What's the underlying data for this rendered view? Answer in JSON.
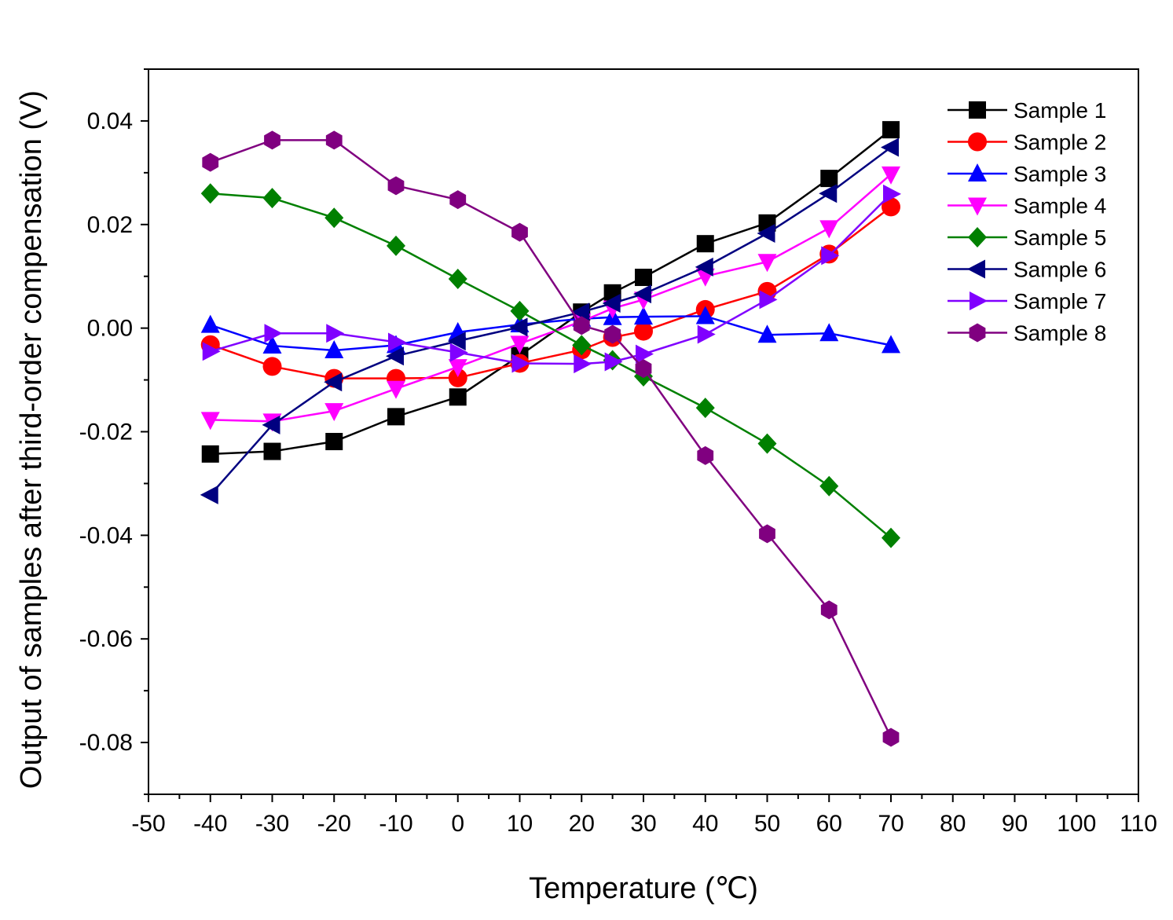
{
  "chart_data": {
    "type": "line",
    "title": "",
    "xlabel": "Temperature (℃)",
    "ylabel": "Output of samples after third-order compensation (V)",
    "xlim": [
      -50,
      110
    ],
    "ylim": [
      -0.09,
      0.05
    ],
    "xticks": [
      -50,
      -40,
      -30,
      -20,
      -10,
      0,
      10,
      20,
      30,
      40,
      50,
      60,
      70,
      80,
      90,
      100,
      110
    ],
    "xtick_labels": [
      "-50",
      "-40",
      "-30",
      "-20",
      "-10",
      "0",
      "10",
      "20",
      "30",
      "40",
      "50",
      "60",
      "70",
      "80",
      "90",
      "100",
      "110"
    ],
    "yticks": [
      -0.08,
      -0.06,
      -0.04,
      -0.02,
      0.0,
      0.02,
      0.04
    ],
    "ytick_labels": [
      "-0.08",
      "-0.06",
      "-0.04",
      "-0.02",
      "0.00",
      "0.02",
      "0.04"
    ],
    "grid": false,
    "legend_position": "top-right",
    "x": [
      -40,
      -30,
      -20,
      -10,
      0,
      10,
      20,
      25,
      30,
      40,
      50,
      60,
      70
    ],
    "series": [
      {
        "name": "Sample 1",
        "color": "#000000",
        "marker": "square",
        "values": [
          -0.0243,
          -0.0238,
          -0.0219,
          -0.0171,
          -0.0133,
          -0.0053,
          0.0031,
          0.0068,
          0.0098,
          0.0163,
          0.0203,
          0.0289,
          0.0383
        ]
      },
      {
        "name": "Sample 2",
        "color": "#ff0000",
        "marker": "circle",
        "values": [
          -0.0032,
          -0.0074,
          -0.0097,
          -0.0097,
          -0.0096,
          -0.0068,
          -0.0042,
          -0.0018,
          -0.0006,
          0.0036,
          0.0071,
          0.0143,
          0.0234
        ]
      },
      {
        "name": "Sample 3",
        "color": "#0000ff",
        "marker": "triangle-up",
        "values": [
          0.0006,
          -0.0034,
          -0.0043,
          -0.0033,
          -0.0008,
          0.0007,
          0.0018,
          0.0021,
          0.0022,
          0.0023,
          -0.0013,
          -0.001,
          -0.0033
        ]
      },
      {
        "name": "Sample 4",
        "color": "#ff00ff",
        "marker": "triangle-down",
        "values": [
          -0.0177,
          -0.018,
          -0.016,
          -0.0117,
          -0.0075,
          -0.003,
          0.0013,
          0.0038,
          0.0055,
          0.01,
          0.0128,
          0.0193,
          0.0297
        ]
      },
      {
        "name": "Sample 5",
        "color": "#008000",
        "marker": "diamond",
        "values": [
          0.026,
          0.0251,
          0.0213,
          0.0159,
          0.0095,
          0.0033,
          -0.0033,
          -0.0062,
          -0.0093,
          -0.0154,
          -0.0223,
          -0.0305,
          -0.0405
        ]
      },
      {
        "name": "Sample 6",
        "color": "#000080",
        "marker": "triangle-left",
        "values": [
          -0.0322,
          -0.0187,
          -0.0104,
          -0.0054,
          -0.0025,
          0.0002,
          0.0031,
          0.0048,
          0.0066,
          0.0118,
          0.0183,
          0.026,
          0.0349
        ]
      },
      {
        "name": "Sample 7",
        "color": "#8000ff",
        "marker": "triangle-right",
        "values": [
          -0.0045,
          -0.001,
          -0.001,
          -0.0027,
          -0.0047,
          -0.0068,
          -0.0069,
          -0.0065,
          -0.005,
          -0.0012,
          0.0055,
          0.014,
          0.0259
        ]
      },
      {
        "name": "Sample 8",
        "color": "#800080",
        "marker": "hexagon",
        "values": [
          0.032,
          0.0363,
          0.0363,
          0.0275,
          0.0248,
          0.0185,
          0.0005,
          -0.0012,
          -0.0078,
          -0.0246,
          -0.0397,
          -0.0544,
          -0.079
        ]
      }
    ]
  }
}
